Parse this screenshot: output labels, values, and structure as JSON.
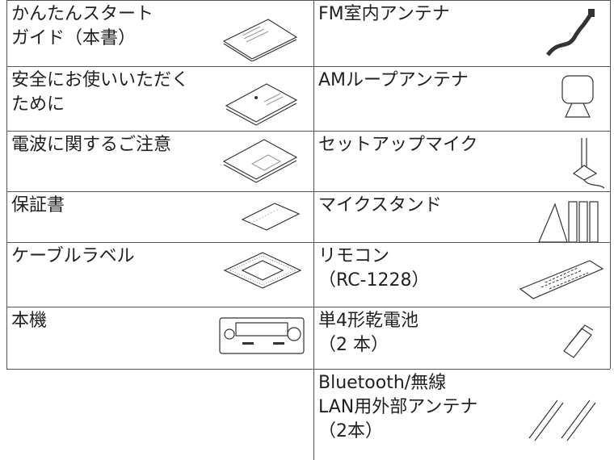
{
  "left_items": [
    {
      "lines": [
        "かんたんスタート",
        "ガイド（本書）"
      ]
    },
    {
      "lines": [
        "安全にお使いいただく",
        "ために"
      ]
    },
    {
      "lines": [
        "電波に関するご注意"
      ]
    },
    {
      "lines": [
        "保証書"
      ]
    },
    {
      "lines": [
        "ケーブルラベル"
      ]
    },
    {
      "lines": [
        "本機"
      ]
    }
  ],
  "right_items": [
    {
      "lines": [
        "FM室内アンテナ"
      ]
    },
    {
      "lines": [
        "AMループアンテナ"
      ]
    },
    {
      "lines": [
        "セットアップマイク"
      ]
    },
    {
      "lines": [
        "マイクスタンド"
      ]
    },
    {
      "lines": [
        "リモコン",
        "（RC-1228）"
      ]
    },
    {
      "lines": [
        "単4形乾電池",
        "（2 本）"
      ]
    },
    {
      "lines": [
        "Bluetooth/無線",
        "LAN用外部アンテナ",
        "（2本）"
      ]
    }
  ]
}
